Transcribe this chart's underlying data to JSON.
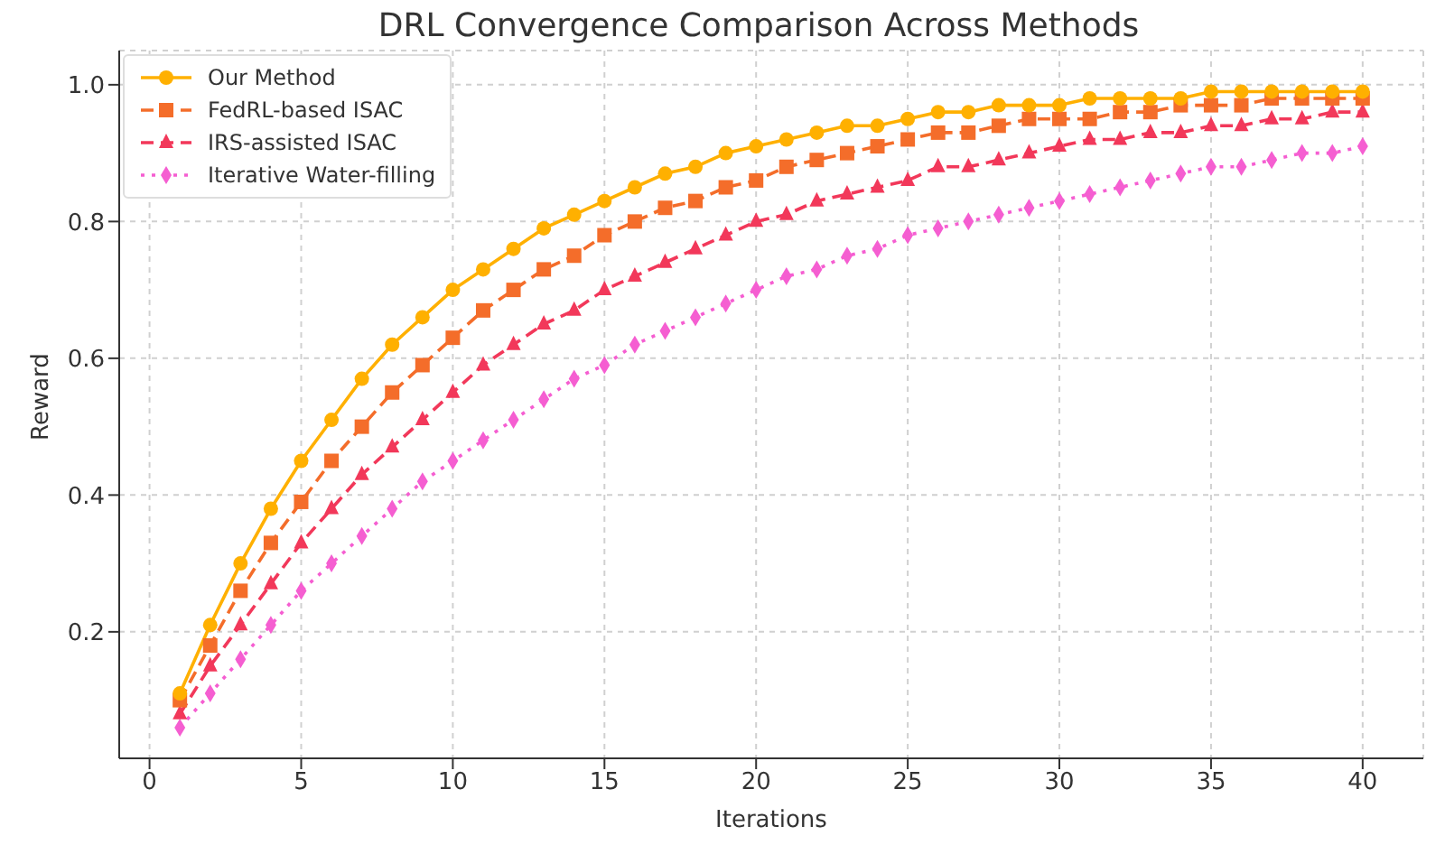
{
  "chart_data": {
    "type": "line",
    "title": "DRL Convergence Comparison Across Methods",
    "xlabel": "Iterations",
    "ylabel": "Reward",
    "x": [
      1,
      2,
      3,
      4,
      5,
      6,
      7,
      8,
      9,
      10,
      11,
      12,
      13,
      14,
      15,
      16,
      17,
      18,
      19,
      20,
      21,
      22,
      23,
      24,
      25,
      26,
      27,
      28,
      29,
      30,
      31,
      32,
      33,
      34,
      35,
      36,
      37,
      38,
      39,
      40
    ],
    "series": [
      {
        "name": "Our Method",
        "color": "#ffb000",
        "marker": "circle",
        "line_style": "solid",
        "values": [
          0.11,
          0.21,
          0.3,
          0.38,
          0.45,
          0.51,
          0.57,
          0.62,
          0.66,
          0.7,
          0.73,
          0.76,
          0.79,
          0.81,
          0.83,
          0.85,
          0.87,
          0.88,
          0.9,
          0.91,
          0.92,
          0.93,
          0.94,
          0.94,
          0.95,
          0.96,
          0.96,
          0.97,
          0.97,
          0.97,
          0.98,
          0.98,
          0.98,
          0.98,
          0.99,
          0.99,
          0.99,
          0.99,
          0.99,
          0.99
        ]
      },
      {
        "name": "FedRL-based ISAC",
        "color": "#f46d2a",
        "marker": "square",
        "line_style": "dashed",
        "values": [
          0.1,
          0.18,
          0.26,
          0.33,
          0.39,
          0.45,
          0.5,
          0.55,
          0.59,
          0.63,
          0.67,
          0.7,
          0.73,
          0.75,
          0.78,
          0.8,
          0.82,
          0.83,
          0.85,
          0.86,
          0.88,
          0.89,
          0.9,
          0.91,
          0.92,
          0.93,
          0.93,
          0.94,
          0.95,
          0.95,
          0.95,
          0.96,
          0.96,
          0.97,
          0.97,
          0.97,
          0.98,
          0.98,
          0.98,
          0.98
        ]
      },
      {
        "name": "IRS-assisted ISAC",
        "color": "#f2385a",
        "marker": "triangle",
        "line_style": "dashed",
        "values": [
          0.08,
          0.15,
          0.21,
          0.27,
          0.33,
          0.38,
          0.43,
          0.47,
          0.51,
          0.55,
          0.59,
          0.62,
          0.65,
          0.67,
          0.7,
          0.72,
          0.74,
          0.76,
          0.78,
          0.8,
          0.81,
          0.83,
          0.84,
          0.85,
          0.86,
          0.88,
          0.88,
          0.89,
          0.9,
          0.91,
          0.92,
          0.92,
          0.93,
          0.93,
          0.94,
          0.94,
          0.95,
          0.95,
          0.96,
          0.96
        ]
      },
      {
        "name": "Iterative Water-filling",
        "color": "#f55ed1",
        "marker": "diamond",
        "line_style": "dotted",
        "values": [
          0.06,
          0.11,
          0.16,
          0.21,
          0.26,
          0.3,
          0.34,
          0.38,
          0.42,
          0.45,
          0.48,
          0.51,
          0.54,
          0.57,
          0.59,
          0.62,
          0.64,
          0.66,
          0.68,
          0.7,
          0.72,
          0.73,
          0.75,
          0.76,
          0.78,
          0.79,
          0.8,
          0.81,
          0.82,
          0.83,
          0.84,
          0.85,
          0.86,
          0.87,
          0.88,
          0.88,
          0.89,
          0.9,
          0.9,
          0.91
        ]
      }
    ],
    "xlim": [
      -1,
      42
    ],
    "xticks": [
      0,
      5,
      10,
      15,
      20,
      25,
      30,
      35,
      40
    ],
    "ylim": [
      0.015,
      1.05
    ],
    "yticks": [
      0.2,
      0.4,
      0.6,
      0.8,
      {
        "value": 1,
        "label": "1.0"
      }
    ],
    "grid": true,
    "legend": "top left"
  }
}
